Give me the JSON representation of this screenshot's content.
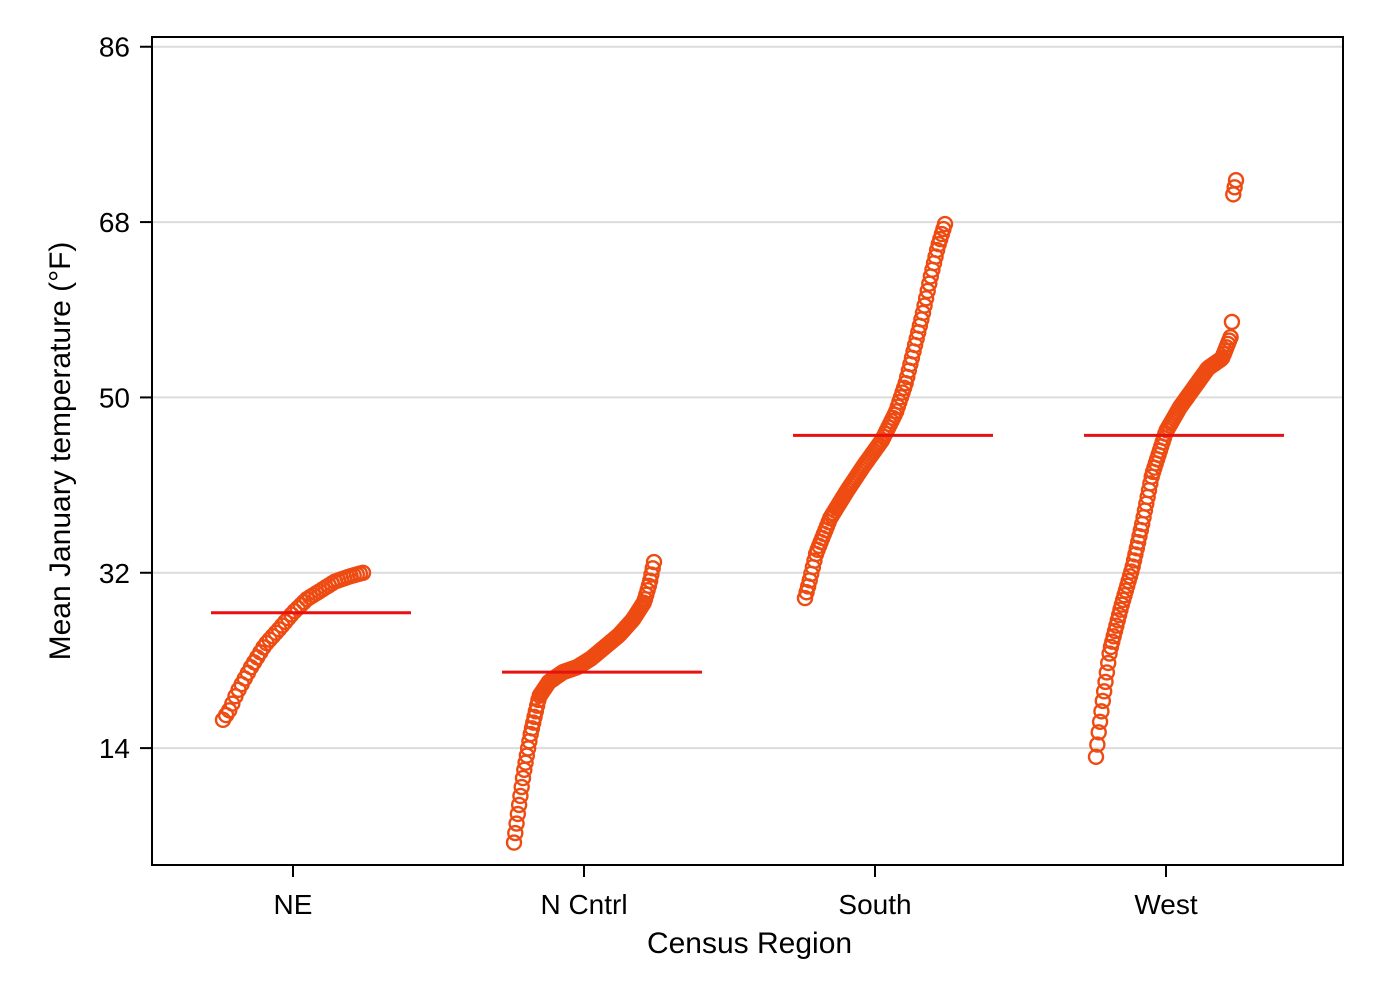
{
  "chart_data": {
    "type": "scatter",
    "title": "",
    "xlabel": "Census Region",
    "ylabel": "Mean January temperature (°F)",
    "ylim": [
      2,
      87
    ],
    "yticks": [
      14,
      32,
      50,
      68,
      86
    ],
    "ytick_labels": [
      "14",
      "32",
      "50",
      "68",
      "86"
    ],
    "categories": [
      "NE",
      "N Cntrl",
      "South",
      "West"
    ],
    "grid": true,
    "legend": "none",
    "marker": "hollow-circle",
    "colors": {
      "point": "#ee4b12",
      "mean_line": "#e81010",
      "grid": "#dcdcdc",
      "axis": "#000000"
    },
    "groups": [
      {
        "category": "NE",
        "n": 46,
        "min": 16.9,
        "max": 32.0,
        "mean": 27.9,
        "quantiles": [
          [
            0,
            16.9
          ],
          [
            0.05,
            18.0
          ],
          [
            0.1,
            19.7
          ],
          [
            0.2,
            22.3
          ],
          [
            0.3,
            24.6
          ],
          [
            0.4,
            26.2
          ],
          [
            0.5,
            27.9
          ],
          [
            0.6,
            29.3
          ],
          [
            0.7,
            30.2
          ],
          [
            0.8,
            31.1
          ],
          [
            0.9,
            31.6
          ],
          [
            1,
            32.0
          ]
        ]
      },
      {
        "category": "N Cntrl",
        "n": 110,
        "min": 4.3,
        "max": 33.1,
        "mean": 21.8,
        "quantiles": [
          [
            0,
            4.3
          ],
          [
            0.03,
            7.5
          ],
          [
            0.07,
            11.5
          ],
          [
            0.12,
            15.5
          ],
          [
            0.18,
            19.3
          ],
          [
            0.25,
            20.8
          ],
          [
            0.35,
            21.8
          ],
          [
            0.45,
            22.3
          ],
          [
            0.55,
            23.2
          ],
          [
            0.65,
            24.4
          ],
          [
            0.75,
            25.6
          ],
          [
            0.85,
            27.2
          ],
          [
            0.93,
            29.0
          ],
          [
            0.97,
            31.0
          ],
          [
            1,
            33.1
          ]
        ]
      },
      {
        "category": "South",
        "n": 90,
        "min": 29.4,
        "max": 67.8,
        "mean": 46.1,
        "quantiles": [
          [
            0,
            29.4
          ],
          [
            0.03,
            31.0
          ],
          [
            0.08,
            34.0
          ],
          [
            0.18,
            37.6
          ],
          [
            0.3,
            40.4
          ],
          [
            0.42,
            43.0
          ],
          [
            0.55,
            45.6
          ],
          [
            0.65,
            48.5
          ],
          [
            0.72,
            51.5
          ],
          [
            0.78,
            55.0
          ],
          [
            0.84,
            58.5
          ],
          [
            0.9,
            62.5
          ],
          [
            0.95,
            65.5
          ],
          [
            1,
            67.8
          ]
        ]
      },
      {
        "category": "West",
        "n": 104,
        "min": 13.1,
        "max": 72.3,
        "mean": 46.1,
        "quantiles": [
          [
            0,
            13.1
          ],
          [
            0.02,
            15.7
          ],
          [
            0.05,
            19.0
          ],
          [
            0.1,
            24.0
          ],
          [
            0.18,
            28.5
          ],
          [
            0.26,
            32.5
          ],
          [
            0.33,
            37.0
          ],
          [
            0.4,
            42.0
          ],
          [
            0.5,
            46.5
          ],
          [
            0.6,
            49.0
          ],
          [
            0.7,
            51.0
          ],
          [
            0.8,
            53.0
          ],
          [
            0.9,
            54.0
          ],
          [
            0.97,
            56.5
          ],
          [
            0.98,
            70.8
          ],
          [
            1,
            72.3
          ]
        ]
      }
    ]
  }
}
